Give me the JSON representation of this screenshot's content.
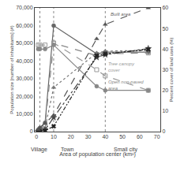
{
  "chart_data": {
    "type": "line",
    "x": [
      1,
      2,
      5,
      10,
      35,
      40,
      65
    ],
    "series": [
      {
        "values": [
          1000,
          2000,
          5000,
          60000,
          44000,
          45000,
          45000
        ],
        "color": "#666666",
        "marker": "circle",
        "line_style": "solid"
      },
      {
        "values": [
          500,
          1500,
          3500,
          50000,
          43000,
          44000,
          44500
        ],
        "color": "#888888",
        "marker": "square-open",
        "line_style": "dash"
      },
      {
        "values": [
          200,
          800,
          2000,
          25000,
          44500,
          45500,
          46000
        ],
        "color": "#777777",
        "marker": "triangle-up",
        "line_style": "dot"
      },
      {
        "values": [
          100,
          300,
          1000,
          8000,
          42000,
          43500,
          47000
        ],
        "color": "#444444",
        "marker": "star",
        "line_style": "dashdot"
      },
      {
        "values": [
          50,
          150,
          500,
          3000,
          43000,
          44000,
          46500
        ],
        "color": "#222222",
        "marker": "x",
        "line_style": "dashdotdot"
      },
      {
        "values": [
          1,
          2,
          4,
          8,
          45,
          52,
          60
        ],
        "axis": "y2",
        "color": "#555555",
        "marker": "triangle-up",
        "line_style": "dash"
      },
      {
        "values": [
          42,
          42,
          42,
          43,
          30,
          27,
          20
        ],
        "axis": "y2",
        "color": "#999999",
        "marker": "square-open",
        "line_style": "dash"
      },
      {
        "values": [
          40,
          40,
          40,
          42,
          22,
          20,
          20
        ],
        "axis": "y2",
        "color": "#888888",
        "marker": "circle",
        "line_style": "solid"
      }
    ],
    "xlim": [
      -1,
      72
    ],
    "xticks": [
      0,
      10,
      20,
      30,
      40,
      50,
      60,
      70
    ],
    "ylim": [
      0,
      70000
    ],
    "yticks": [
      0,
      {
        "value": 10000,
        "label": "10,000"
      },
      {
        "value": 20000,
        "label": "20,000"
      },
      {
        "value": 30000,
        "label": "30,000"
      },
      {
        "value": 40000,
        "label": "40,000"
      },
      {
        "value": 50000,
        "label": "50,000"
      },
      {
        "value": 60000,
        "label": "60,000"
      },
      {
        "value": 70000,
        "label": "70,000"
      }
    ],
    "y2lim": [
      0,
      60
    ],
    "y2ticks": [
      0,
      10,
      20,
      30,
      40,
      50,
      60
    ],
    "xlabel": "Area of population center (km²)",
    "ylabel": "Population size [number of inhabitants] (#)",
    "y2label": "Percent cover of land uses (%)",
    "vlines": [
      2,
      10,
      40
    ],
    "annotations": [
      {
        "text": "Village",
        "x": 1.5
      },
      {
        "text": "Town",
        "x": 18
      },
      {
        "text": "Small city",
        "x": 52
      },
      {
        "text": "Built area",
        "x": 42,
        "y": 55,
        "axis": "y2",
        "color": "#666666"
      },
      {
        "text": "Tree canopy\ncover",
        "x": 41,
        "y": 28,
        "axis": "y2",
        "color": "#999999"
      },
      {
        "text": "Open non-paved\narea",
        "x": 41,
        "y": 19,
        "axis": "y2",
        "color": "#888888"
      }
    ],
    "grid": false
  }
}
